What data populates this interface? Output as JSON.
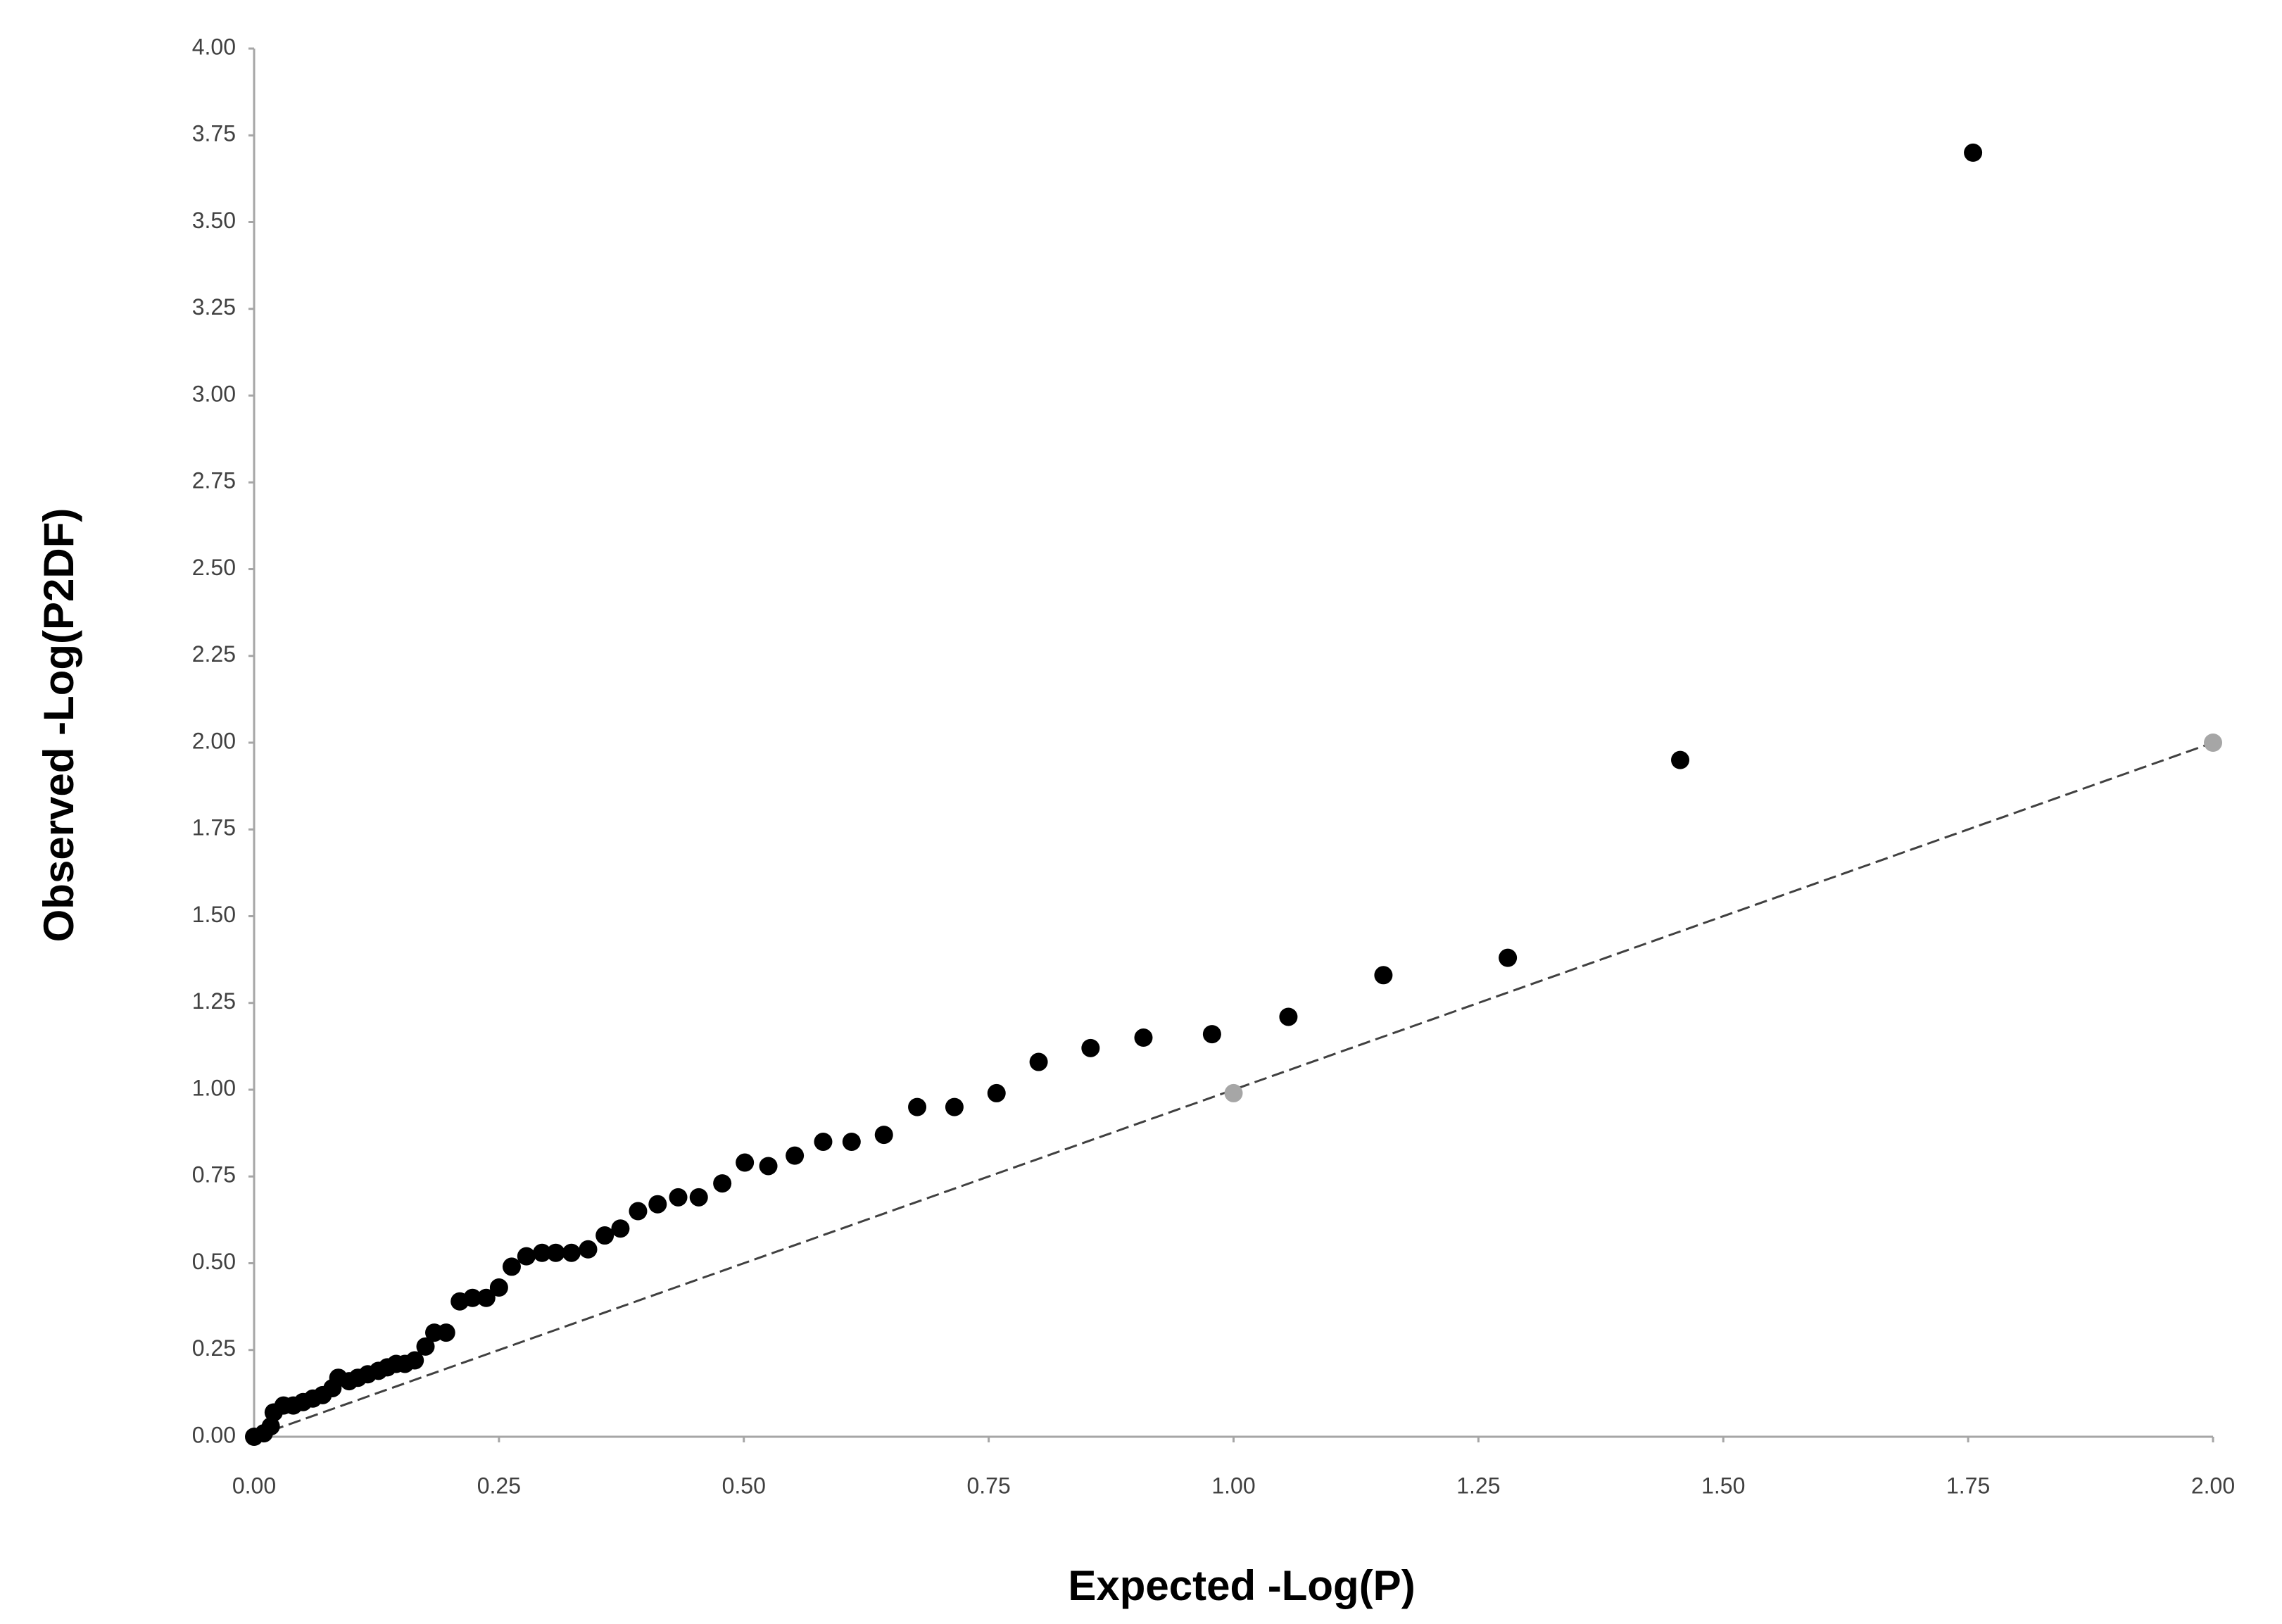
{
  "chart_data": {
    "type": "scatter",
    "x_label": "Expected -Log(P)",
    "y_label": "Observed -Log(P2DF)",
    "xlim": [
      0,
      2
    ],
    "ylim": [
      0,
      4
    ],
    "xticks": [
      {
        "value": 0,
        "label": "0.00"
      },
      {
        "value": 0.25,
        "label": "0.25"
      },
      {
        "value": 0.5,
        "label": "0.50"
      },
      {
        "value": 0.75,
        "label": "0.75"
      },
      {
        "value": 1,
        "label": "1.00"
      },
      {
        "value": 1.25,
        "label": "1.25"
      },
      {
        "value": 1.5,
        "label": "1.50"
      },
      {
        "value": 1.75,
        "label": "1.75"
      },
      {
        "value": 2,
        "label": "2.00"
      }
    ],
    "yticks": [
      {
        "value": 0,
        "label": "0.00"
      },
      {
        "value": 0.25,
        "label": "0.25"
      },
      {
        "value": 0.5,
        "label": "0.50"
      },
      {
        "value": 0.75,
        "label": "0.75"
      },
      {
        "value": 1,
        "label": "1.00"
      },
      {
        "value": 1.25,
        "label": "1.25"
      },
      {
        "value": 1.5,
        "label": "1.50"
      },
      {
        "value": 1.75,
        "label": "1.75"
      },
      {
        "value": 2,
        "label": "2.00"
      },
      {
        "value": 2.25,
        "label": "2.25"
      },
      {
        "value": 2.5,
        "label": "2.50"
      },
      {
        "value": 2.75,
        "label": "2.75"
      },
      {
        "value": 3,
        "label": "3.00"
      },
      {
        "value": 3.25,
        "label": "3.25"
      },
      {
        "value": 3.5,
        "label": "3.50"
      },
      {
        "value": 3.75,
        "label": "3.75"
      },
      {
        "value": 4,
        "label": "4.00"
      }
    ],
    "grid": false,
    "reference_line": {
      "x": [
        0,
        2
      ],
      "y": [
        0,
        2
      ],
      "color": "#404040",
      "dashed": true
    },
    "series": [
      {
        "color": "#000000",
        "x": [
          0,
          0.01,
          0.017,
          0.02,
          0.03,
          0.04,
          0.05,
          0.06,
          0.07,
          0.08,
          0.086,
          0.097,
          0.106,
          0.116,
          0.127,
          0.136,
          0.145,
          0.154,
          0.164,
          0.175,
          0.184,
          0.196,
          0.21,
          0.223,
          0.237,
          0.25,
          0.263,
          0.278,
          0.294,
          0.308,
          0.324,
          0.341,
          0.358,
          0.374,
          0.392,
          0.412,
          0.433,
          0.454,
          0.478,
          0.501,
          0.525,
          0.552,
          0.581,
          0.61,
          0.643,
          0.677,
          0.715,
          0.758,
          0.801,
          0.854,
          0.908,
          0.978,
          1.056,
          1.153,
          1.28,
          1.456,
          1.755
        ],
        "values": [
          0,
          0.01,
          0.03,
          0.07,
          0.09,
          0.09,
          0.1,
          0.11,
          0.12,
          0.14,
          0.17,
          0.16,
          0.17,
          0.18,
          0.19,
          0.2,
          0.21,
          0.21,
          0.22,
          0.26,
          0.3,
          0.3,
          0.39,
          0.4,
          0.4,
          0.43,
          0.49,
          0.52,
          0.53,
          0.53,
          0.53,
          0.54,
          0.58,
          0.6,
          0.65,
          0.67,
          0.69,
          0.69,
          0.73,
          0.79,
          0.78,
          0.81,
          0.85,
          0.85,
          0.87,
          0.95,
          0.95,
          0.99,
          1.08,
          1.12,
          1.15,
          1.16,
          1.21,
          1.33,
          1.38,
          1.95,
          3.7
        ]
      },
      {
        "color": "#a6a6a6",
        "x": [
          1,
          2
        ],
        "values": [
          0.99,
          2
        ]
      }
    ]
  }
}
